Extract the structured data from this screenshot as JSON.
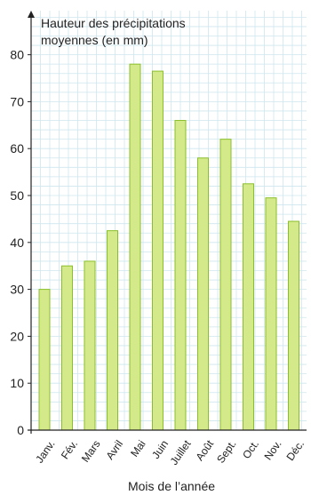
{
  "chart_data": {
    "type": "bar",
    "categories": [
      "Janv.",
      "Fév.",
      "Mars",
      "Avril",
      "Mai",
      "Juin",
      "Juillet",
      "Août",
      "Sept.",
      "Oct.",
      "Nov.",
      "Déc."
    ],
    "values": [
      30,
      35,
      36,
      42.5,
      78,
      76.5,
      66,
      58,
      62,
      52.5,
      49.5,
      44.5
    ],
    "ylabel_lines": [
      "Hauteur des précipitations",
      "moyennes (en mm)"
    ],
    "xlabel": "Mois de l’année",
    "yticks": [
      0,
      10,
      20,
      30,
      40,
      50,
      60,
      70,
      80
    ],
    "ylim": [
      0,
      90
    ],
    "grid": true,
    "colors": {
      "bar_fill": "#d4ea8a",
      "bar_edge": "#8bbf2a",
      "grid": "#cfe6ef",
      "axis": "#222222"
    }
  }
}
